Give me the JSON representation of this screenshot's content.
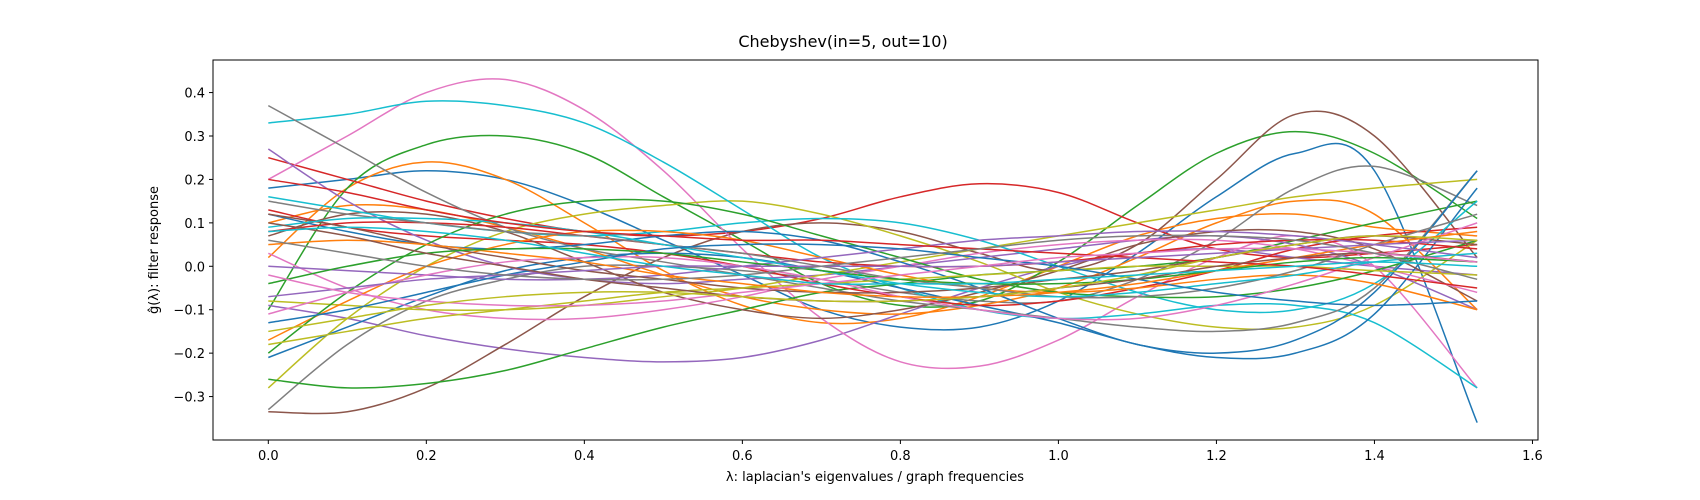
{
  "chart_data": {
    "type": "line",
    "title": "Chebyshev(in=5, out=10)",
    "xlabel": "λ: laplacian's eigenvalues / graph frequencies",
    "ylabel": "ĝ(λ): filter response",
    "xlim": [
      -0.07,
      1.607
    ],
    "ylim": [
      -0.4,
      0.475
    ],
    "xticks": [
      0.0,
      0.2,
      0.4,
      0.6,
      0.8,
      1.0,
      1.2,
      1.4,
      1.6
    ],
    "xtick_labels": [
      "0.0",
      "0.2",
      "0.4",
      "0.6",
      "0.8",
      "1.0",
      "1.2",
      "1.4",
      "1.6"
    ],
    "yticks": [
      -0.3,
      -0.2,
      -0.1,
      0.0,
      0.1,
      0.2,
      0.3,
      0.4
    ],
    "ytick_labels": [
      "−0.3",
      "−0.2",
      "−0.1",
      "0.0",
      "0.1",
      "0.2",
      "0.3",
      "0.4"
    ],
    "grid": false,
    "colors": [
      "#1f77b4",
      "#ff7f0e",
      "#2ca02c",
      "#d62728",
      "#9467bd",
      "#8c564b",
      "#e377c2",
      "#7f7f7f",
      "#bcbd22",
      "#17becf"
    ],
    "x": [
      0.0,
      0.1,
      0.2,
      0.3,
      0.4,
      0.5,
      0.6,
      0.7,
      0.8,
      0.9,
      1.0,
      1.1,
      1.2,
      1.3,
      1.4,
      1.53
    ],
    "series": [
      {
        "values": [
          0.18,
          0.2,
          0.22,
          0.2,
          0.14,
          0.06,
          -0.02,
          -0.1,
          -0.14,
          -0.14,
          -0.08,
          0.03,
          0.16,
          0.26,
          0.22,
          -0.36
        ]
      },
      {
        "values": [
          0.02,
          0.18,
          0.24,
          0.2,
          0.1,
          -0.01,
          -0.09,
          -0.13,
          -0.12,
          -0.07,
          0.0,
          0.07,
          0.11,
          0.12,
          0.09,
          0.07
        ]
      },
      {
        "values": [
          -0.1,
          0.18,
          0.28,
          0.3,
          0.26,
          0.16,
          0.06,
          -0.04,
          -0.09,
          -0.08,
          0.01,
          0.14,
          0.26,
          0.31,
          0.26,
          0.11
        ]
      },
      {
        "values": [
          0.25,
          0.2,
          0.15,
          0.11,
          0.08,
          0.07,
          0.08,
          0.11,
          0.16,
          0.19,
          0.17,
          0.1,
          0.04,
          0.02,
          0.03,
          0.05
        ]
      },
      {
        "values": [
          -0.09,
          -0.12,
          -0.16,
          -0.19,
          -0.21,
          -0.22,
          -0.21,
          -0.17,
          -0.11,
          -0.05,
          0.0,
          0.03,
          0.04,
          0.02,
          0.0,
          -0.02
        ]
      },
      {
        "values": [
          -0.335,
          -0.335,
          -0.28,
          -0.18,
          -0.07,
          0.02,
          0.08,
          0.1,
          0.08,
          0.03,
          -0.01,
          0.05,
          0.2,
          0.35,
          0.3,
          0.02
        ]
      },
      {
        "values": [
          0.2,
          0.3,
          0.4,
          0.43,
          0.36,
          0.22,
          0.04,
          -0.12,
          -0.22,
          -0.23,
          -0.17,
          -0.07,
          0.02,
          0.07,
          0.0,
          -0.28
        ]
      },
      {
        "values": [
          -0.33,
          -0.18,
          -0.08,
          -0.03,
          0.0,
          0.0,
          -0.01,
          -0.03,
          -0.06,
          -0.08,
          -0.08,
          -0.03,
          0.06,
          0.18,
          0.23,
          0.14
        ]
      },
      {
        "values": [
          -0.28,
          -0.12,
          0.0,
          0.08,
          0.12,
          0.14,
          0.15,
          0.12,
          0.07,
          0.01,
          -0.06,
          -0.11,
          -0.14,
          -0.14,
          -0.09,
          0.06
        ]
      },
      {
        "values": [
          0.33,
          0.35,
          0.38,
          0.37,
          0.33,
          0.24,
          0.13,
          0.02,
          -0.05,
          -0.1,
          -0.12,
          -0.11,
          -0.09,
          -0.09,
          -0.13,
          -0.28
        ]
      },
      {
        "values": [
          -0.21,
          -0.14,
          -0.07,
          -0.01,
          0.02,
          0.03,
          0.02,
          -0.01,
          -0.05,
          -0.09,
          -0.13,
          -0.18,
          -0.21,
          -0.2,
          -0.11,
          0.18
        ]
      },
      {
        "values": [
          0.1,
          0.14,
          0.13,
          0.09,
          0.04,
          -0.02,
          -0.07,
          -0.1,
          -0.11,
          -0.09,
          -0.05,
          0.02,
          0.1,
          0.15,
          0.12,
          -0.1
        ]
      },
      {
        "values": [
          -0.26,
          -0.28,
          -0.27,
          -0.24,
          -0.19,
          -0.14,
          -0.1,
          -0.06,
          -0.04,
          -0.02,
          -0.01,
          0.0,
          0.02,
          0.06,
          0.1,
          0.15
        ]
      },
      {
        "values": [
          0.13,
          0.09,
          0.07,
          0.06,
          0.05,
          0.03,
          0.0,
          -0.04,
          -0.07,
          -0.09,
          -0.08,
          -0.05,
          -0.01,
          0.04,
          0.07,
          0.09
        ]
      },
      {
        "values": [
          0.27,
          0.15,
          0.06,
          0.0,
          -0.03,
          -0.04,
          -0.03,
          -0.02,
          0.0,
          0.02,
          0.04,
          0.06,
          0.07,
          0.05,
          0.0,
          -0.1
        ]
      },
      {
        "values": [
          0.07,
          0.12,
          0.12,
          0.08,
          0.01,
          -0.06,
          -0.1,
          -0.12,
          -0.1,
          -0.06,
          -0.01,
          0.05,
          0.08,
          0.08,
          0.04,
          -0.08
        ]
      },
      {
        "values": [
          0.03,
          -0.05,
          -0.1,
          -0.12,
          -0.12,
          -0.1,
          -0.07,
          -0.03,
          0.0,
          0.03,
          0.05,
          0.06,
          0.06,
          0.04,
          0.0,
          -0.06
        ]
      },
      {
        "values": [
          0.37,
          0.27,
          0.17,
          0.09,
          0.04,
          0.01,
          -0.02,
          -0.05,
          -0.08,
          -0.1,
          -0.12,
          -0.14,
          -0.15,
          -0.13,
          -0.05,
          0.22
        ]
      },
      {
        "values": [
          -0.08,
          -0.09,
          -0.1,
          -0.1,
          -0.09,
          -0.07,
          -0.05,
          -0.02,
          0.01,
          0.04,
          0.07,
          0.1,
          0.13,
          0.16,
          0.18,
          0.2
        ]
      },
      {
        "values": [
          0.16,
          0.13,
          0.1,
          0.08,
          0.07,
          0.08,
          0.1,
          0.11,
          0.1,
          0.06,
          0.0,
          -0.06,
          -0.1,
          -0.1,
          -0.04,
          0.15
        ]
      },
      {
        "values": [
          0.12,
          0.08,
          0.05,
          0.04,
          0.05,
          0.07,
          0.08,
          0.06,
          0.01,
          -0.05,
          -0.12,
          -0.18,
          -0.2,
          -0.17,
          -0.06,
          0.22
        ]
      },
      {
        "values": [
          -0.17,
          -0.08,
          0.0,
          0.05,
          0.08,
          0.08,
          0.06,
          0.02,
          -0.02,
          -0.05,
          -0.06,
          -0.05,
          -0.03,
          -0.02,
          -0.04,
          -0.1
        ]
      },
      {
        "values": [
          -0.2,
          -0.06,
          0.05,
          0.12,
          0.15,
          0.15,
          0.12,
          0.07,
          0.02,
          -0.03,
          -0.06,
          -0.07,
          -0.07,
          -0.05,
          -0.01,
          0.06
        ]
      },
      {
        "values": [
          0.08,
          0.1,
          0.1,
          0.09,
          0.07,
          0.05,
          0.03,
          0.01,
          0.0,
          0.0,
          0.01,
          0.03,
          0.05,
          0.06,
          0.06,
          0.04
        ]
      },
      {
        "values": [
          0.0,
          -0.01,
          -0.02,
          -0.03,
          -0.03,
          -0.02,
          0.0,
          0.02,
          0.04,
          0.06,
          0.07,
          0.08,
          0.08,
          0.07,
          0.05,
          0.02
        ]
      },
      {
        "values": [
          0.12,
          0.09,
          0.05,
          0.02,
          -0.01,
          -0.03,
          -0.05,
          -0.06,
          -0.06,
          -0.05,
          -0.03,
          -0.01,
          0.02,
          0.05,
          0.07,
          0.05
        ]
      },
      {
        "values": [
          -0.11,
          -0.06,
          -0.02,
          0.01,
          0.02,
          0.02,
          0.0,
          -0.03,
          -0.07,
          -0.1,
          -0.12,
          -0.12,
          -0.09,
          -0.04,
          0.02,
          0.1
        ]
      },
      {
        "values": [
          0.15,
          0.12,
          0.1,
          0.08,
          0.07,
          0.05,
          0.03,
          0.0,
          -0.03,
          -0.05,
          -0.07,
          -0.07,
          -0.05,
          -0.01,
          0.05,
          0.12
        ]
      },
      {
        "values": [
          -0.18,
          -0.15,
          -0.12,
          -0.1,
          -0.08,
          -0.06,
          -0.05,
          -0.04,
          -0.03,
          -0.02,
          -0.01,
          0.0,
          0.0,
          0.0,
          -0.01,
          -0.02
        ]
      },
      {
        "values": [
          0.09,
          0.11,
          0.11,
          0.1,
          0.08,
          0.05,
          0.02,
          -0.01,
          -0.04,
          -0.06,
          -0.07,
          -0.06,
          -0.04,
          -0.02,
          0.01,
          0.03
        ]
      },
      {
        "values": [
          -0.13,
          -0.1,
          -0.06,
          -0.02,
          0.01,
          0.04,
          0.05,
          0.05,
          0.04,
          0.02,
          0.0,
          -0.03,
          -0.06,
          -0.08,
          -0.09,
          -0.08
        ]
      },
      {
        "values": [
          0.05,
          0.06,
          0.05,
          0.03,
          0.01,
          -0.02,
          -0.04,
          -0.06,
          -0.07,
          -0.07,
          -0.06,
          -0.04,
          -0.01,
          0.02,
          0.05,
          0.08
        ]
      },
      {
        "values": [
          -0.04,
          0.0,
          0.03,
          0.04,
          0.04,
          0.03,
          0.01,
          -0.01,
          -0.03,
          -0.04,
          -0.04,
          -0.03,
          -0.01,
          0.01,
          0.02,
          0.01
        ]
      },
      {
        "values": [
          0.2,
          0.17,
          0.13,
          0.1,
          0.08,
          0.07,
          0.06,
          0.06,
          0.05,
          0.04,
          0.03,
          0.02,
          0.01,
          0.0,
          -0.02,
          -0.05
        ]
      },
      {
        "values": [
          -0.07,
          -0.05,
          -0.03,
          -0.02,
          -0.01,
          0.0,
          0.0,
          0.0,
          0.0,
          0.0,
          0.01,
          0.02,
          0.03,
          0.04,
          0.05,
          0.06
        ]
      },
      {
        "values": [
          0.1,
          0.07,
          0.03,
          0.0,
          -0.03,
          -0.05,
          -0.07,
          -0.08,
          -0.08,
          -0.07,
          -0.05,
          -0.03,
          0.0,
          0.02,
          0.03,
          0.01
        ]
      },
      {
        "values": [
          -0.02,
          -0.06,
          -0.08,
          -0.09,
          -0.09,
          -0.08,
          -0.06,
          -0.04,
          -0.02,
          0.0,
          0.02,
          0.03,
          0.04,
          0.04,
          0.03,
          0.01
        ]
      },
      {
        "values": [
          0.06,
          0.03,
          0.0,
          -0.02,
          -0.03,
          -0.03,
          -0.02,
          0.0,
          0.02,
          0.04,
          0.06,
          0.07,
          0.07,
          0.06,
          0.03,
          -0.03
        ]
      },
      {
        "values": [
          -0.15,
          -0.12,
          -0.09,
          -0.07,
          -0.06,
          -0.06,
          -0.07,
          -0.08,
          -0.08,
          -0.07,
          -0.05,
          -0.02,
          0.02,
          0.05,
          0.07,
          0.06
        ]
      },
      {
        "values": [
          0.08,
          0.09,
          0.08,
          0.06,
          0.03,
          0.0,
          -0.02,
          -0.04,
          -0.04,
          -0.04,
          -0.03,
          -0.02,
          -0.01,
          0.0,
          0.01,
          0.0
        ]
      }
    ]
  }
}
